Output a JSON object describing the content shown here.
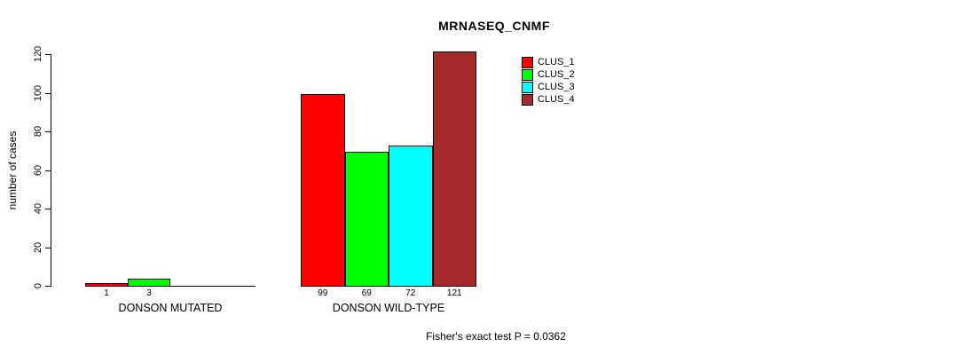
{
  "title": "MRNASEQ_CNMF",
  "annotation": "Fisher's exact test P = 0.0362",
  "chart_data": {
    "type": "bar",
    "title": "MRNASEQ_CNMF",
    "xlabel": "",
    "ylabel": "number of cases",
    "ylim": [
      0,
      120
    ],
    "yticks": [
      0,
      20,
      40,
      60,
      80,
      100,
      120
    ],
    "grid": false,
    "legend_position": "top-right-inside",
    "categories": [
      "DONSON MUTATED",
      "DONSON WILD-TYPE"
    ],
    "series": [
      {
        "name": "CLUS_1",
        "color": "#ff0000",
        "values": [
          1,
          99
        ]
      },
      {
        "name": "CLUS_2",
        "color": "#00ff00",
        "values": [
          3,
          69
        ]
      },
      {
        "name": "CLUS_3",
        "color": "#00ffff",
        "values": [
          0,
          72
        ]
      },
      {
        "name": "CLUS_4",
        "color": "#a52a2a",
        "values": [
          0,
          121
        ]
      }
    ],
    "bar_value_labels": {
      "shown": true,
      "hidden_when_zero": true
    },
    "annotation": "Fisher's exact test P = 0.0362"
  }
}
